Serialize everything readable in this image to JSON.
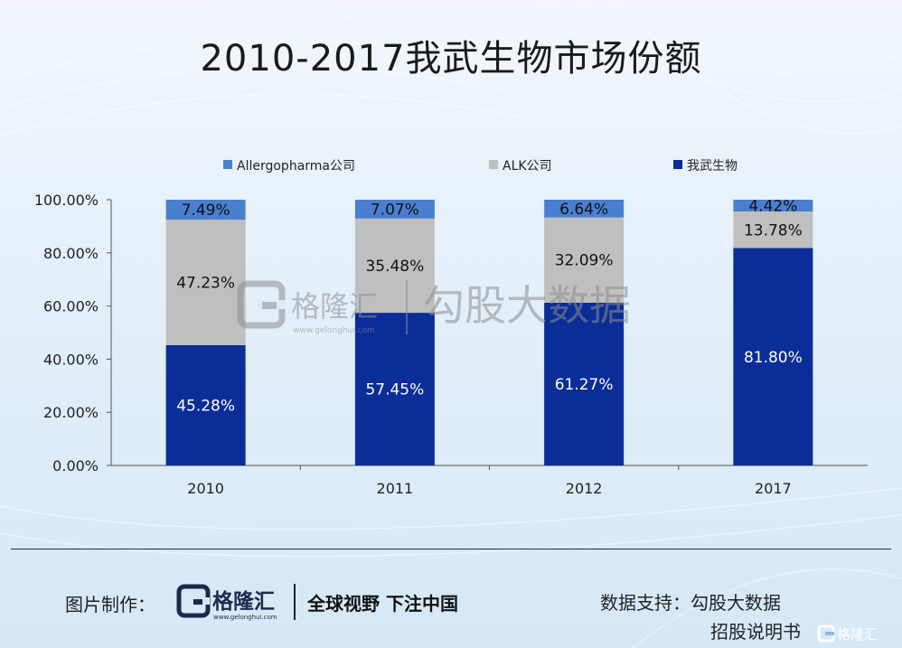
{
  "title": "2010-2017我武生物市场份额",
  "chart_data": {
    "type": "bar",
    "stacked": true,
    "categories": [
      "2010",
      "2011",
      "2012",
      "2017"
    ],
    "series": [
      {
        "name": "我武生物",
        "color": "#0a2d97",
        "values": [
          45.28,
          57.45,
          61.27,
          81.8
        ],
        "labels": [
          "45.28%",
          "57.45%",
          "61.27%",
          "81.80%"
        ]
      },
      {
        "name": "ALK公司",
        "color": "#bfbfbf",
        "values": [
          47.23,
          35.48,
          32.09,
          13.78
        ],
        "labels": [
          "47.23%",
          "35.48%",
          "32.09%",
          "13.78%"
        ]
      },
      {
        "name": "Allergopharma公司",
        "color": "#4a7fd0",
        "values": [
          7.49,
          7.07,
          6.64,
          4.42
        ],
        "labels": [
          "7.49%",
          "7.07%",
          "6.64%",
          "4.42%"
        ]
      }
    ],
    "legend_order": [
      "Allergopharma公司",
      "ALK公司",
      "我武生物"
    ],
    "ylim": [
      0,
      100
    ],
    "yticks": [
      "0.00%",
      "20.00%",
      "40.00%",
      "60.00%",
      "80.00%",
      "100.00%"
    ],
    "legend_position": "top",
    "grid": false
  },
  "watermark": {
    "logo_text": "格隆汇",
    "url": "www.gelonghui.com",
    "brand": "勾股大数据"
  },
  "footer": {
    "made_by": "图片制作：",
    "logo_text": "格隆汇",
    "logo_url": "www.gelonghui.com",
    "slogan": "全球视野 下注中国",
    "source_line1": "数据支持：勾股大数据",
    "source_line2": "招股说明书",
    "corner_logo": "格隆汇"
  }
}
